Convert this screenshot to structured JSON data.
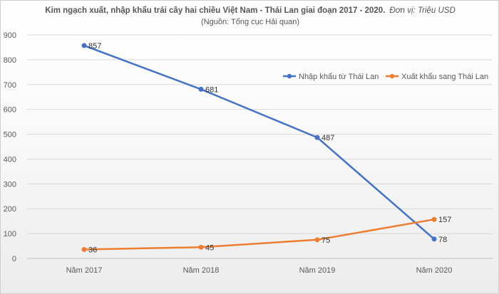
{
  "chart_data": {
    "type": "line",
    "title": "Kim ngạch xuất, nhập khẩu trái cây hai chiều Việt Nam - Thái Lan giai đoạn 2017 - 2020.",
    "unit": "Đơn vị: Triệu USD",
    "subtitle": "(Nguồn: Tổng cục Hải quan)",
    "categories": [
      "Năm 2017",
      "Năm 2018",
      "Năm 2019",
      "Năm 2020"
    ],
    "series": [
      {
        "name": "Nhập khẩu từ Thái Lan",
        "values": [
          857,
          681,
          487,
          78
        ],
        "color": "#4472C4"
      },
      {
        "name": "Xuất khẩu sang Thái Lan",
        "values": [
          36,
          45,
          75,
          157
        ],
        "color": "#ED7D31"
      }
    ],
    "ylim": [
      0,
      900
    ],
    "yticks": [
      0,
      100,
      200,
      300,
      400,
      500,
      600,
      700,
      800,
      900
    ],
    "grid": true,
    "legend_position": "right"
  }
}
